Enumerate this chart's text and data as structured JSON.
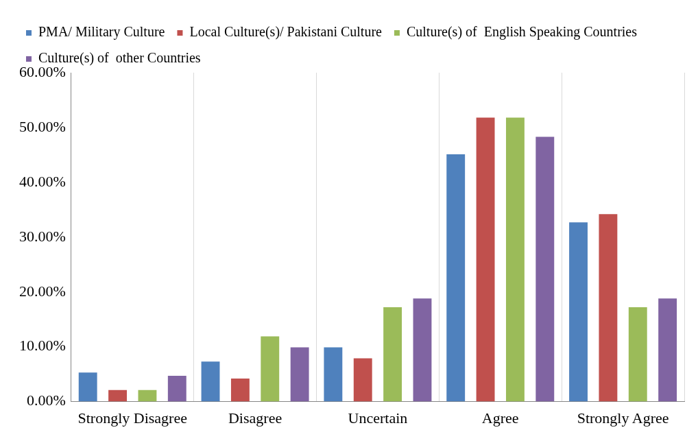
{
  "chart_data": {
    "type": "bar",
    "categories": [
      "Strongly Disagree",
      "Disagree",
      "Uncertain",
      "Agree",
      "Strongly Agree"
    ],
    "series": [
      {
        "name": "PMA/ Military Culture",
        "color": "#4f81bd",
        "values": [
          5.3,
          7.3,
          9.9,
          45.1,
          32.7
        ]
      },
      {
        "name": "Local Culture(s)/ Pakistani Culture",
        "color": "#c0504d",
        "values": [
          2.1,
          4.2,
          7.9,
          51.8,
          34.2
        ]
      },
      {
        "name": "Culture(s) of  English Speaking Countries",
        "color": "#9bbb59",
        "values": [
          2.1,
          11.9,
          17.2,
          51.8,
          17.2
        ]
      },
      {
        "name": "Culture(s) of  other Countries",
        "color": "#8064a2",
        "values": [
          4.7,
          9.9,
          18.8,
          48.3,
          18.8
        ]
      }
    ],
    "ylim": [
      0,
      60
    ],
    "yticks": [
      {
        "value": 0,
        "label": "0.00%"
      },
      {
        "value": 10,
        "label": "10.00%"
      },
      {
        "value": 20,
        "label": "20.00%"
      },
      {
        "value": 30,
        "label": "30.00%"
      },
      {
        "value": 40,
        "label": "40.00%"
      },
      {
        "value": 50,
        "label": "50.00%"
      },
      {
        "value": 60,
        "label": "60.00%"
      }
    ],
    "grid": "x",
    "legend": "top"
  }
}
